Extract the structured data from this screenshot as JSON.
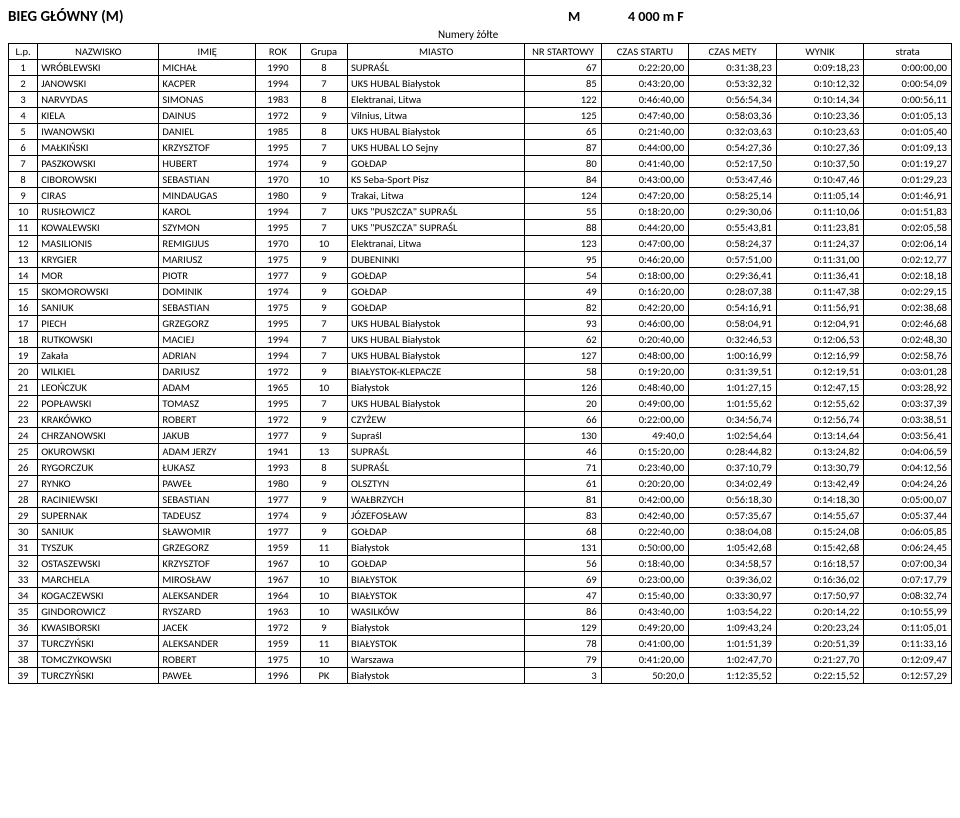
{
  "header": {
    "title": "BIEG GŁÓWNY (M)",
    "gender": "M",
    "distance": "4 000 m F",
    "subhead": "Numery żółte"
  },
  "columns": [
    "L.p.",
    "NAZWISKO",
    "IMIĘ",
    "ROK",
    "Grupa",
    "MIASTO",
    "NR STARTOWY",
    "CZAS STARTU",
    "CZAS METY",
    "WYNIK",
    "strata"
  ],
  "rows": [
    [
      "1",
      "WRÓBLEWSKI",
      "MICHAŁ",
      "1990",
      "8",
      "SUPRAŚL",
      "67",
      "0:22:20,00",
      "0:31:38,23",
      "0:09:18,23",
      "0:00:00,00"
    ],
    [
      "2",
      "JANOWSKI",
      "KACPER",
      "1994",
      "7",
      "UKS HUBAL Białystok",
      "85",
      "0:43:20,00",
      "0:53:32,32",
      "0:10:12,32",
      "0:00:54,09"
    ],
    [
      "3",
      "NARVYDAS",
      "SIMONAS",
      "1983",
      "8",
      "Elektranai, Litwa",
      "122",
      "0:46:40,00",
      "0:56:54,34",
      "0:10:14,34",
      "0:00:56,11"
    ],
    [
      "4",
      "KIELA",
      "DAINUS",
      "1972",
      "9",
      "Vilnius, Litwa",
      "125",
      "0:47:40,00",
      "0:58:03,36",
      "0:10:23,36",
      "0:01:05,13"
    ],
    [
      "5",
      "IWANOWSKI",
      "DANIEL",
      "1985",
      "8",
      "UKS HUBAL Białystok",
      "65",
      "0:21:40,00",
      "0:32:03,63",
      "0:10:23,63",
      "0:01:05,40"
    ],
    [
      "6",
      "MAŁKIŃSKI",
      "KRZYSZTOF",
      "1995",
      "7",
      "UKS HUBAL LO Sejny",
      "87",
      "0:44:00,00",
      "0:54:27,36",
      "0:10:27,36",
      "0:01:09,13"
    ],
    [
      "7",
      "PASZKOWSKI",
      "HUBERT",
      "1974",
      "9",
      "GOŁDAP",
      "80",
      "0:41:40,00",
      "0:52:17,50",
      "0:10:37,50",
      "0:01:19,27"
    ],
    [
      "8",
      "CIBOROWSKI",
      "SEBASTIAN",
      "1970",
      "10",
      "KS Seba-Sport Pisz",
      "84",
      "0:43:00,00",
      "0:53:47,46",
      "0:10:47,46",
      "0:01:29,23"
    ],
    [
      "9",
      "CIRAS",
      "MINDAUGAS",
      "1980",
      "9",
      "Trakai, Litwa",
      "124",
      "0:47:20,00",
      "0:58:25,14",
      "0:11:05,14",
      "0:01:46,91"
    ],
    [
      "10",
      "RUSIŁOWICZ",
      "KAROL",
      "1994",
      "7",
      "UKS \"PUSZCZA\" SUPRAŚL",
      "55",
      "0:18:20,00",
      "0:29:30,06",
      "0:11:10,06",
      "0:01:51,83"
    ],
    [
      "11",
      "KOWALEWSKI",
      "SZYMON",
      "1995",
      "7",
      "UKS \"PUSZCZA\" SUPRAŚL",
      "88",
      "0:44:20,00",
      "0:55:43,81",
      "0:11:23,81",
      "0:02:05,58"
    ],
    [
      "12",
      "MASILIONIS",
      "REMIGIJUS",
      "1970",
      "10",
      "Elektranai, Litwa",
      "123",
      "0:47:00,00",
      "0:58:24,37",
      "0:11:24,37",
      "0:02:06,14"
    ],
    [
      "13",
      "KRYGIER",
      "MARIUSZ",
      "1975",
      "9",
      "DUBENINKI",
      "95",
      "0:46:20,00",
      "0:57:51,00",
      "0:11:31,00",
      "0:02:12,77"
    ],
    [
      "14",
      "MOR",
      "PIOTR",
      "1977",
      "9",
      "GOŁDAP",
      "54",
      "0:18:00,00",
      "0:29:36,41",
      "0:11:36,41",
      "0:02:18,18"
    ],
    [
      "15",
      "SKOMOROWSKI",
      "DOMINIK",
      "1974",
      "9",
      "GOŁDAP",
      "49",
      "0:16:20,00",
      "0:28:07,38",
      "0:11:47,38",
      "0:02:29,15"
    ],
    [
      "16",
      "SANIUK",
      "SEBASTIAN",
      "1975",
      "9",
      "GOŁDAP",
      "82",
      "0:42:20,00",
      "0:54:16,91",
      "0:11:56,91",
      "0:02:38,68"
    ],
    [
      "17",
      "PIECH",
      "GRZEGORZ",
      "1995",
      "7",
      "UKS HUBAL Białystok",
      "93",
      "0:46:00,00",
      "0:58:04,91",
      "0:12:04,91",
      "0:02:46,68"
    ],
    [
      "18",
      "RUTKOWSKI",
      "MACIEJ",
      "1994",
      "7",
      "UKS HUBAL Białystok",
      "62",
      "0:20:40,00",
      "0:32:46,53",
      "0:12:06,53",
      "0:02:48,30"
    ],
    [
      "19",
      "Zakała",
      "ADRIAN",
      "1994",
      "7",
      "UKS HUBAL Białystok",
      "127",
      "0:48:00,00",
      "1:00:16,99",
      "0:12:16,99",
      "0:02:58,76"
    ],
    [
      "20",
      "WILKIEL",
      "DARIUSZ",
      "1972",
      "9",
      "BIAŁYSTOK-KLEPACZE",
      "58",
      "0:19:20,00",
      "0:31:39,51",
      "0:12:19,51",
      "0:03:01,28"
    ],
    [
      "21",
      "LEOŃCZUK",
      "ADAM",
      "1965",
      "10",
      "Białystok",
      "126",
      "0:48:40,00",
      "1:01:27,15",
      "0:12:47,15",
      "0:03:28,92"
    ],
    [
      "22",
      "POPŁAWSKI",
      "TOMASZ",
      "1995",
      "7",
      "UKS HUBAL Białystok",
      "20",
      "0:49:00,00",
      "1:01:55,62",
      "0:12:55,62",
      "0:03:37,39"
    ],
    [
      "23",
      "KRAKÓWKO",
      "ROBERT",
      "1972",
      "9",
      "CZYŻEW",
      "66",
      "0:22:00,00",
      "0:34:56,74",
      "0:12:56,74",
      "0:03:38,51"
    ],
    [
      "24",
      "CHRZANOWSKI",
      "JAKUB",
      "1977",
      "9",
      "Supraśl",
      "130",
      "49:40,0",
      "1:02:54,64",
      "0:13:14,64",
      "0:03:56,41"
    ],
    [
      "25",
      "OKUROWSKI",
      "ADAM JERZY",
      "1941",
      "13",
      "SUPRAŚL",
      "46",
      "0:15:20,00",
      "0:28:44,82",
      "0:13:24,82",
      "0:04:06,59"
    ],
    [
      "26",
      "RYGORCZUK",
      "ŁUKASZ",
      "1993",
      "8",
      "SUPRAŚL",
      "71",
      "0:23:40,00",
      "0:37:10,79",
      "0:13:30,79",
      "0:04:12,56"
    ],
    [
      "27",
      "RYNKO",
      "PAWEŁ",
      "1980",
      "9",
      "OLSZTYN",
      "61",
      "0:20:20,00",
      "0:34:02,49",
      "0:13:42,49",
      "0:04:24,26"
    ],
    [
      "28",
      "RACINIEWSKI",
      "SEBASTIAN",
      "1977",
      "9",
      "WAŁBRZYCH",
      "81",
      "0:42:00,00",
      "0:56:18,30",
      "0:14:18,30",
      "0:05:00,07"
    ],
    [
      "29",
      "SUPERNAK",
      "TADEUSZ",
      "1974",
      "9",
      "JÓZEFOSŁAW",
      "83",
      "0:42:40,00",
      "0:57:35,67",
      "0:14:55,67",
      "0:05:37,44"
    ],
    [
      "30",
      "SANIUK",
      "SŁAWOMIR",
      "1977",
      "9",
      "GOŁDAP",
      "68",
      "0:22:40,00",
      "0:38:04,08",
      "0:15:24,08",
      "0:06:05,85"
    ],
    [
      "31",
      "TYSZUK",
      "GRZEGORZ",
      "1959",
      "11",
      "Białystok",
      "131",
      "0:50:00,00",
      "1:05:42,68",
      "0:15:42,68",
      "0:06:24,45"
    ],
    [
      "32",
      "OSTASZEWSKI",
      "KRZYSZTOF",
      "1967",
      "10",
      "GOŁDAP",
      "56",
      "0:18:40,00",
      "0:34:58,57",
      "0:16:18,57",
      "0:07:00,34"
    ],
    [
      "33",
      "MARCHELA",
      "MIROSŁAW",
      "1967",
      "10",
      "BIAŁYSTOK",
      "69",
      "0:23:00,00",
      "0:39:36,02",
      "0:16:36,02",
      "0:07:17,79"
    ],
    [
      "34",
      "KOGACZEWSKI",
      "ALEKSANDER",
      "1964",
      "10",
      "BIAŁYSTOK",
      "47",
      "0:15:40,00",
      "0:33:30,97",
      "0:17:50,97",
      "0:08:32,74"
    ],
    [
      "35",
      "GINDOROWICZ",
      "RYSZARD",
      "1963",
      "10",
      "WASILKÓW",
      "86",
      "0:43:40,00",
      "1:03:54,22",
      "0:20:14,22",
      "0:10:55,99"
    ],
    [
      "36",
      "KWASIBORSKI",
      "JACEK",
      "1972",
      "9",
      "Białystok",
      "129",
      "0:49:20,00",
      "1:09:43,24",
      "0:20:23,24",
      "0:11:05,01"
    ],
    [
      "37",
      "TURCZYŃSKI",
      "ALEKSANDER",
      "1959",
      "11",
      "BIAŁYSTOK",
      "78",
      "0:41:00,00",
      "1:01:51,39",
      "0:20:51,39",
      "0:11:33,16"
    ],
    [
      "38",
      "TOMCZYKOWSKI",
      "ROBERT",
      "1975",
      "10",
      "Warszawa",
      "79",
      "0:41:20,00",
      "1:02:47,70",
      "0:21:27,70",
      "0:12:09,47"
    ],
    [
      "39",
      "TURCZYŃSKI",
      "PAWEŁ",
      "1996",
      "PK",
      "Białystok",
      "3",
      "50:20,0",
      "1:12:35,52",
      "0:22:15,52",
      "0:12:57,29"
    ]
  ]
}
